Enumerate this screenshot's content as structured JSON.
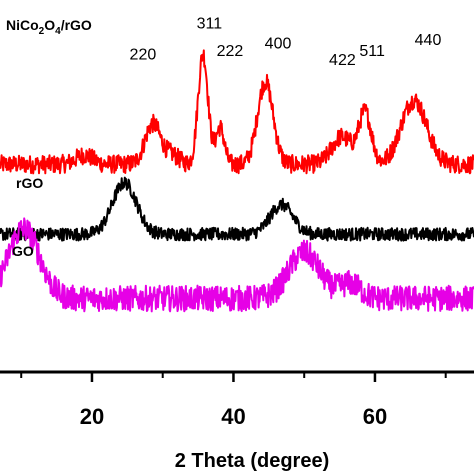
{
  "chart_data": {
    "type": "line",
    "xlabel": "2 Theta (degree)",
    "ylabel": "",
    "xlim": [
      7,
      74
    ],
    "xticks": [
      20,
      40,
      60
    ],
    "xtick_labels": [
      "20",
      "40",
      "60"
    ],
    "minor_xticks": [
      10,
      30,
      50,
      70
    ],
    "grid": false,
    "series": [
      {
        "name": "NiCo2O4/rGO",
        "color": "#ff0000",
        "baseline": 0.78,
        "noise": 0.05,
        "peaks": [
          {
            "x": 18.9,
            "height": 0.05,
            "width": 1.2
          },
          {
            "x": 28.6,
            "height": 0.22,
            "width": 1.1
          },
          {
            "x": 31.3,
            "height": 0.05,
            "width": 1.0
          },
          {
            "x": 35.7,
            "height": 0.6,
            "width": 0.7
          },
          {
            "x": 38.1,
            "height": 0.2,
            "width": 0.6
          },
          {
            "x": 44.5,
            "height": 0.45,
            "width": 1.1
          },
          {
            "x": 55.3,
            "height": 0.15,
            "width": 1.4
          },
          {
            "x": 58.6,
            "height": 0.28,
            "width": 0.9
          },
          {
            "x": 65.5,
            "height": 0.35,
            "width": 1.8
          }
        ]
      },
      {
        "name": "rGO",
        "color": "#000000",
        "baseline": 0.4,
        "noise": 0.035,
        "peaks": [
          {
            "x": 24.6,
            "height": 0.28,
            "width": 1.7
          },
          {
            "x": 46.8,
            "height": 0.16,
            "width": 1.6
          }
        ]
      },
      {
        "name": "GO",
        "color": "#e600e6",
        "baseline": 0.05,
        "noise": 0.07,
        "peaks": [
          {
            "x": 9.5,
            "height": 0.22,
            "width": 2.0
          },
          {
            "x": 11.3,
            "height": 0.2,
            "width": 2.0
          },
          {
            "x": 50.0,
            "height": 0.25,
            "width": 2.2
          },
          {
            "x": 56.5,
            "height": 0.08,
            "width": 1.5
          }
        ]
      }
    ],
    "annotations": [
      {
        "text": "220",
        "x": 27.2,
        "y": 1.35
      },
      {
        "text": "311",
        "x": 36.6,
        "y": 1.52
      },
      {
        "text": "222",
        "x": 39.5,
        "y": 1.37
      },
      {
        "text": "400",
        "x": 46.3,
        "y": 1.41
      },
      {
        "text": "422",
        "x": 55.4,
        "y": 1.32
      },
      {
        "text": "511",
        "x": 59.6,
        "y": 1.37
      },
      {
        "text": "440",
        "x": 67.5,
        "y": 1.43
      }
    ],
    "ylim": [
      -0.35,
      1.62
    ]
  }
}
